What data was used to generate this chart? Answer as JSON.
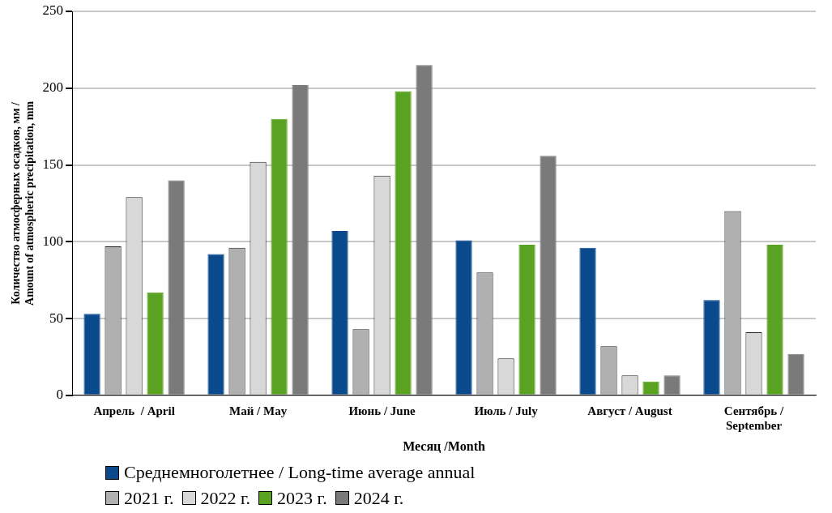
{
  "chart_data": {
    "type": "bar",
    "xlabel": "Месяц /Month",
    "ylabel": "Количество атмосферных осадков, мм / Amount of atmospheric precipitation, mm",
    "categories": [
      "Апрель  / April",
      "Май / May",
      "Июнь / June",
      "Июль / July",
      "Август / August",
      "Сентябрь / September"
    ],
    "series": [
      {
        "name": "Среднемноголетнее / Long-time average annual",
        "color": "#0a4a8c",
        "values": [
          53,
          92,
          107,
          101,
          96,
          62
        ]
      },
      {
        "name": "2021 г.",
        "color": "#b0b0b0",
        "values": [
          97,
          96,
          43,
          80,
          32,
          120
        ]
      },
      {
        "name": "2022 г.",
        "color": "#d8d8d8",
        "values": [
          129,
          152,
          143,
          24,
          13,
          41
        ]
      },
      {
        "name": "2023 г.",
        "color": "#5aa221",
        "values": [
          67,
          180,
          198,
          98,
          9,
          98
        ]
      },
      {
        "name": "2024 г.",
        "color": "#7a7a7a",
        "values": [
          140,
          202,
          215,
          156,
          13,
          27
        ]
      }
    ],
    "ylim": [
      0,
      250
    ],
    "yticks": [
      0,
      50,
      100,
      150,
      200,
      250
    ],
    "grid": "y",
    "legend": "bottom"
  }
}
